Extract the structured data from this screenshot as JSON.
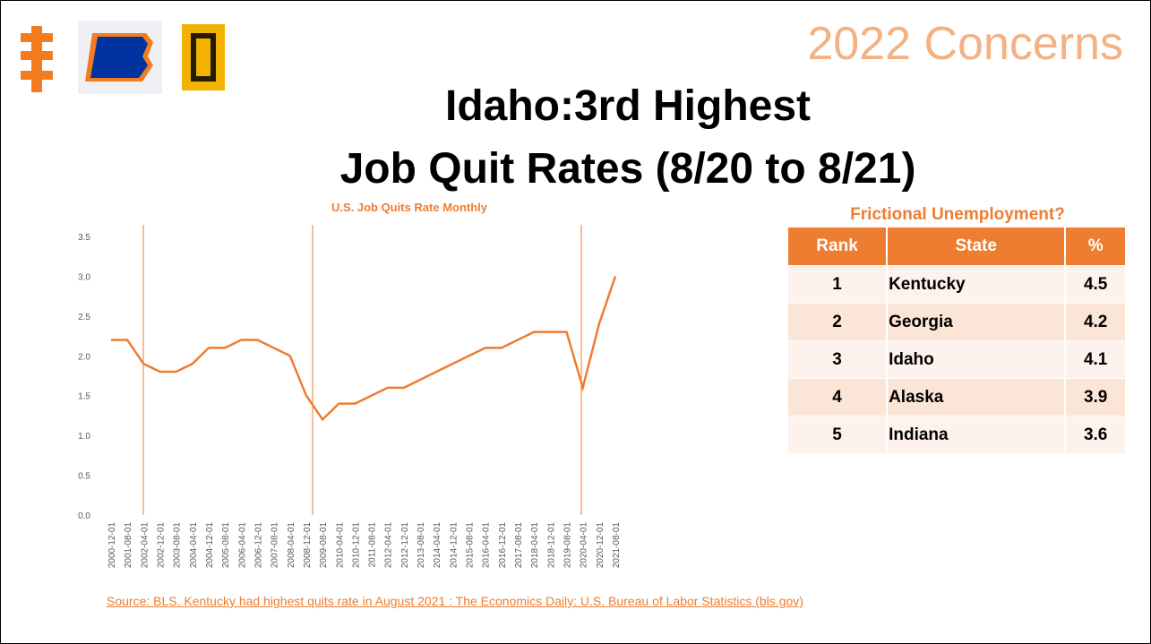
{
  "header": {
    "heading": "2022 Concerns",
    "title": [
      "Idaho:3rd Highest",
      "Job Quit Rates (8/20 to 8/21)"
    ]
  },
  "chart_data": {
    "type": "line",
    "title": "U.S. Job Quits Rate Monthly",
    "categories": [
      "2000-12-01",
      "2001-08-01",
      "2002-04-01",
      "2002-12-01",
      "2003-08-01",
      "2004-04-01",
      "2004-12-01",
      "2005-08-01",
      "2006-04-01",
      "2006-12-01",
      "2007-08-01",
      "2008-04-01",
      "2008-12-01",
      "2009-08-01",
      "2010-04-01",
      "2010-12-01",
      "2011-08-01",
      "2012-04-01",
      "2012-12-01",
      "2013-08-01",
      "2014-04-01",
      "2014-12-01",
      "2015-08-01",
      "2016-04-01",
      "2016-12-01",
      "2017-08-01",
      "2018-04-01",
      "2018-12-01",
      "2019-08-01",
      "2020-04-01",
      "2020-12-01",
      "2021-08-01"
    ],
    "series": [
      {
        "name": "Quits rate",
        "color": "#ed7d31",
        "values": [
          2.2,
          2.2,
          1.9,
          1.8,
          1.8,
          1.9,
          2.1,
          2.1,
          2.2,
          2.2,
          2.1,
          2.0,
          1.5,
          1.2,
          1.4,
          1.4,
          1.5,
          1.6,
          1.6,
          1.7,
          1.8,
          1.9,
          2.0,
          2.1,
          2.1,
          2.2,
          2.3,
          2.3,
          2.3,
          1.6,
          2.4,
          3.0
        ]
      }
    ],
    "ylim": [
      0,
      3.5
    ],
    "yticks": [
      {
        "value": 0,
        "label": "0.0"
      },
      0.5,
      {
        "value": 1,
        "label": "1.0"
      },
      1.5,
      {
        "value": 2,
        "label": "2.0"
      },
      2.5,
      {
        "value": 3,
        "label": "3.0"
      },
      3.5
    ],
    "grid": false
  },
  "table": {
    "title": "Frictional Unemployment?",
    "header": [
      "Rank",
      "State",
      "%"
    ],
    "rows": [
      [
        "1",
        "Kentucky",
        "4.5"
      ],
      [
        "2",
        "Georgia",
        "4.2"
      ],
      [
        "3",
        "Idaho",
        "4.1"
      ],
      [
        "4",
        "Alaska",
        "3.9"
      ],
      [
        "5",
        "Indiana",
        "3.6"
      ]
    ]
  },
  "source": "Source:  BLS.  Kentucky had highest quits rate in August 2021 : The Economics Daily: U.S. Bureau of Labor Statistics (bls.gov)"
}
